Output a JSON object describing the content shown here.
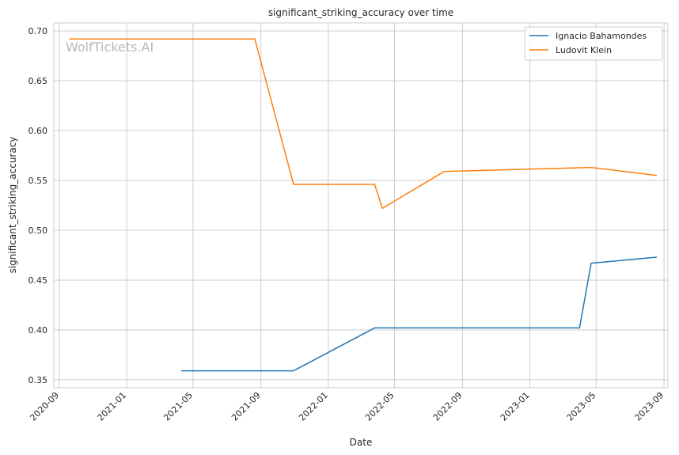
{
  "chart_data": {
    "type": "line",
    "title": "significant_striking_accuracy over time",
    "xlabel": "Date",
    "ylabel": "significant_striking_accuracy",
    "watermark": "WolfTickets.AI",
    "xlim": [
      "2020-08-22",
      "2023-09-08"
    ],
    "ylim": [
      0.342,
      0.708
    ],
    "x_ticks": [
      "2020-09",
      "2021-01",
      "2021-05",
      "2021-09",
      "2022-01",
      "2022-05",
      "2022-09",
      "2023-01",
      "2023-05",
      "2023-09"
    ],
    "y_ticks": [
      0.35,
      0.4,
      0.45,
      0.5,
      0.55,
      0.6,
      0.65,
      0.7
    ],
    "y_tick_labels": [
      "0.35",
      "0.40",
      "0.45",
      "0.50",
      "0.55",
      "0.60",
      "0.65",
      "0.70"
    ],
    "grid": true,
    "legend_position": "top-right",
    "series": [
      {
        "name": "Ignacio Bahamondes",
        "color": "#1f77b4",
        "points": [
          {
            "x": "2021-04-10",
            "y": 0.359
          },
          {
            "x": "2021-10-30",
            "y": 0.359
          },
          {
            "x": "2022-03-26",
            "y": 0.402
          },
          {
            "x": "2023-04-01",
            "y": 0.402
          },
          {
            "x": "2023-04-22",
            "y": 0.467
          },
          {
            "x": "2023-08-19",
            "y": 0.473
          }
        ]
      },
      {
        "name": "Ludovit Klein",
        "color": "#ff7f0e",
        "points": [
          {
            "x": "2020-09-19",
            "y": 0.692
          },
          {
            "x": "2021-08-21",
            "y": 0.692
          },
          {
            "x": "2021-10-30",
            "y": 0.546
          },
          {
            "x": "2022-03-26",
            "y": 0.546
          },
          {
            "x": "2022-04-09",
            "y": 0.522
          },
          {
            "x": "2022-07-30",
            "y": 0.559
          },
          {
            "x": "2023-04-22",
            "y": 0.563
          },
          {
            "x": "2023-08-19",
            "y": 0.555
          }
        ]
      }
    ]
  }
}
